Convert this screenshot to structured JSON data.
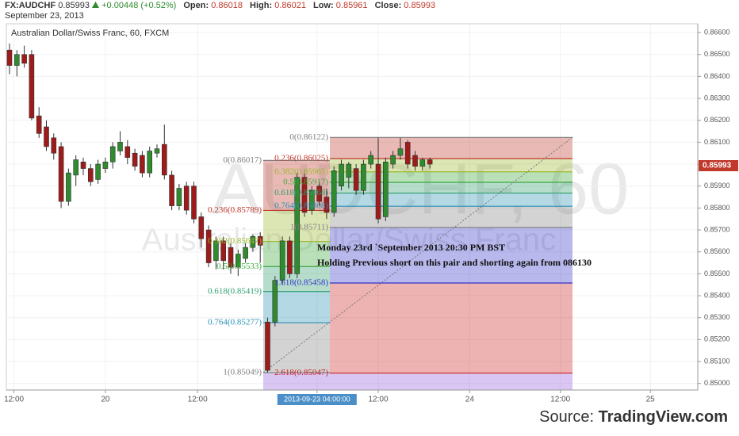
{
  "header": {
    "symbol": "FX:AUDCHF",
    "change": "+0.00448 (+0.52%)",
    "open_label": "Open:",
    "open": 0.86018,
    "high_label": "High:",
    "high": 0.86021,
    "low_label": "Low:",
    "low": 0.85961,
    "close_label": "Close:",
    "close": 0.85993,
    "date": "September 23, 2013"
  },
  "chart_data": {
    "type": "candlestick",
    "title": "Australian Dollar/Swiss Franc, 60, FXCM",
    "watermark": "AUDCHF, 60",
    "watermark_subtitle": "Australian Dollar/Swiss Franc",
    "last_price": 0.85993,
    "x": [
      0,
      1,
      2,
      3,
      4,
      5,
      6,
      7,
      8,
      9,
      10,
      11,
      12,
      13,
      14,
      15,
      16,
      17,
      18,
      19,
      20,
      21,
      22,
      23,
      24,
      25,
      26,
      27,
      28,
      29,
      30,
      31,
      32,
      33,
      34,
      35,
      36,
      37,
      38,
      39,
      40,
      41,
      42,
      43,
      44,
      45,
      46,
      47,
      48,
      49,
      50,
      51,
      52,
      53,
      54,
      55,
      56,
      57
    ],
    "open": [
      0.8652,
      0.8645,
      0.865,
      0.865,
      0.8622,
      0.8617,
      0.8612,
      0.8608,
      0.8583,
      0.8595,
      0.8601,
      0.8598,
      0.8593,
      0.8598,
      0.8601,
      0.8606,
      0.8608,
      0.8605,
      0.8604,
      0.8596,
      0.8605,
      0.8609,
      0.8595,
      0.8581,
      0.859,
      0.859,
      0.8576,
      0.857,
      0.8556,
      0.8565,
      0.8562,
      0.8553,
      0.8557,
      0.8562,
      0.8567,
      0.8528,
      0.8528,
      0.8547,
      0.8565,
      0.855,
      0.8594,
      0.8579,
      0.859,
      0.8585,
      0.8578,
      0.859,
      0.8594,
      0.8598,
      0.8588,
      0.86,
      0.86,
      0.8576,
      0.86,
      0.8604,
      0.861,
      0.8604,
      0.8599,
      0.8602
    ],
    "high": [
      0.8655,
      0.8652,
      0.8654,
      0.8652,
      0.8626,
      0.862,
      0.8614,
      0.861,
      0.8598,
      0.8604,
      0.8603,
      0.86,
      0.8602,
      0.8603,
      0.861,
      0.8615,
      0.8611,
      0.8607,
      0.8606,
      0.8608,
      0.8609,
      0.8618,
      0.8597,
      0.8591,
      0.8592,
      0.8592,
      0.8578,
      0.8572,
      0.8567,
      0.8567,
      0.8564,
      0.8561,
      0.8564,
      0.8568,
      0.8569,
      0.853,
      0.8549,
      0.8567,
      0.8567,
      0.8596,
      0.8597,
      0.859,
      0.8592,
      0.8589,
      0.8599,
      0.8602,
      0.8601,
      0.86,
      0.8602,
      0.8606,
      0.8612,
      0.8603,
      0.8606,
      0.8612,
      0.8611,
      0.8606,
      0.8603,
      0.8603
    ],
    "low": [
      0.8641,
      0.864,
      0.8644,
      0.862,
      0.8612,
      0.8606,
      0.8602,
      0.858,
      0.8581,
      0.859,
      0.8595,
      0.859,
      0.8591,
      0.8596,
      0.8598,
      0.8604,
      0.86,
      0.8597,
      0.8594,
      0.8594,
      0.8603,
      0.8593,
      0.8579,
      0.8579,
      0.8577,
      0.8573,
      0.8562,
      0.8553,
      0.8552,
      0.8552,
      0.855,
      0.8549,
      0.8555,
      0.856,
      0.8555,
      0.8505,
      0.8526,
      0.8545,
      0.8548,
      0.8548,
      0.8576,
      0.8577,
      0.8581,
      0.8575,
      0.8576,
      0.8588,
      0.8589,
      0.8586,
      0.8586,
      0.8598,
      0.8573,
      0.8574,
      0.8598,
      0.8602,
      0.8598,
      0.8597,
      0.8597,
      0.8598
    ],
    "close": [
      0.8645,
      0.865,
      0.8646,
      0.8621,
      0.8614,
      0.8608,
      0.8605,
      0.8583,
      0.8596,
      0.8602,
      0.8598,
      0.8592,
      0.86,
      0.8601,
      0.8608,
      0.861,
      0.8603,
      0.8599,
      0.8596,
      0.8606,
      0.8607,
      0.8595,
      0.8581,
      0.8589,
      0.8579,
      0.8575,
      0.8566,
      0.8555,
      0.8565,
      0.8556,
      0.8553,
      0.8559,
      0.8562,
      0.8567,
      0.8563,
      0.8506,
      0.8547,
      0.8565,
      0.855,
      0.8594,
      0.8578,
      0.8588,
      0.8583,
      0.8578,
      0.8597,
      0.86,
      0.86,
      0.8588,
      0.86,
      0.8604,
      0.8575,
      0.8601,
      0.8604,
      0.8607,
      0.86,
      0.8599,
      0.8602,
      0.86
    ],
    "up_color": "#2e8b2e",
    "down_color": "#9e1b1b",
    "xlim": [
      -0.43,
      93.33
    ],
    "xticks": [
      {
        "value": 0.6,
        "label": "12:00"
      },
      {
        "value": 13,
        "label": "20"
      },
      {
        "value": 25.5,
        "label": "12:00"
      },
      {
        "value": 41.7,
        "label": "2013-09-23 04:00:00"
      },
      {
        "value": 50,
        "label": "12:00"
      },
      {
        "value": 62.4,
        "label": "24"
      },
      {
        "value": 74.7,
        "label": "12:00"
      },
      {
        "value": 86.9,
        "label": "25"
      }
    ],
    "ylim": [
      0.8497,
      0.8664
    ],
    "yticks": [
      {
        "value": 0.866,
        "label": "0.86600"
      },
      {
        "value": 0.865,
        "label": "0.86500"
      },
      {
        "value": 0.864,
        "label": "0.86400"
      },
      {
        "value": 0.863,
        "label": "0.86300"
      },
      {
        "value": 0.862,
        "label": "0.86200"
      },
      {
        "value": 0.861,
        "label": "0.86100"
      },
      {
        "value": 0.86,
        "label": "0.86000"
      },
      {
        "value": 0.859,
        "label": "0.85900"
      },
      {
        "value": 0.858,
        "label": "0.85800"
      },
      {
        "value": 0.857,
        "label": "0.85700"
      },
      {
        "value": 0.856,
        "label": "0.85600"
      },
      {
        "value": 0.855,
        "label": "0.85500"
      },
      {
        "value": 0.854,
        "label": "0.85400"
      },
      {
        "value": 0.853,
        "label": "0.85300"
      },
      {
        "value": 0.852,
        "label": "0.85200"
      },
      {
        "value": 0.851,
        "label": "0.85100"
      },
      {
        "value": 0.85,
        "label": "0.85000"
      }
    ],
    "grid": true,
    "fib_tools": [
      {
        "levels": [
          {
            "label": "0(0.86017)",
            "value": 0.86017,
            "color": "#808080"
          },
          {
            "label": "0.236(0.85789)",
            "value": 0.85789,
            "color": "#c0392b"
          },
          {
            "label": "0.382(0.85647)",
            "value": 0.85647,
            "color": "#9cb82a"
          },
          {
            "label": "0.5(0.85533)",
            "value": 0.85533,
            "color": "#3aa63a"
          },
          {
            "label": "0.618(0.85419)",
            "value": 0.85419,
            "color": "#2e9e6e"
          },
          {
            "label": "0.764(0.85277)",
            "value": 0.85277,
            "color": "#2a8fb5"
          },
          {
            "label": "1(0.85049)",
            "value": 0.85049,
            "color": "#808080"
          }
        ]
      },
      {
        "levels": [
          {
            "label": "0(0.86122)",
            "value": 0.86122,
            "color": "#808080"
          },
          {
            "label": "0.236(0.86025)",
            "value": 0.86025,
            "color": "#c0392b"
          },
          {
            "label": "0.382(0.85965)",
            "value": 0.85965,
            "color": "#9cb82a"
          },
          {
            "label": "0.5(0.85917)",
            "value": 0.85917,
            "color": "#3aa63a"
          },
          {
            "label": "0.618(0.85868)",
            "value": 0.85868,
            "color": "#2e9e6e"
          },
          {
            "label": "0.764(0.85808)",
            "value": 0.85808,
            "color": "#2a8fb5"
          },
          {
            "label": "1(0.85711)",
            "value": 0.85711,
            "color": "#808080"
          },
          {
            "label": "1.618(0.85458)",
            "value": 0.85458,
            "color": "#3333cc"
          },
          {
            "label": "2.618(0.85047)",
            "value": 0.85047,
            "color": "#cc2222"
          }
        ]
      }
    ],
    "annotations": [
      "Monday 23rd `September 2013 20:30 PM BST",
      "Holding Previous short on this pair and shorting again from 086130"
    ]
  },
  "footer": {
    "source_label": "Source:",
    "source": "TradingView.com"
  }
}
